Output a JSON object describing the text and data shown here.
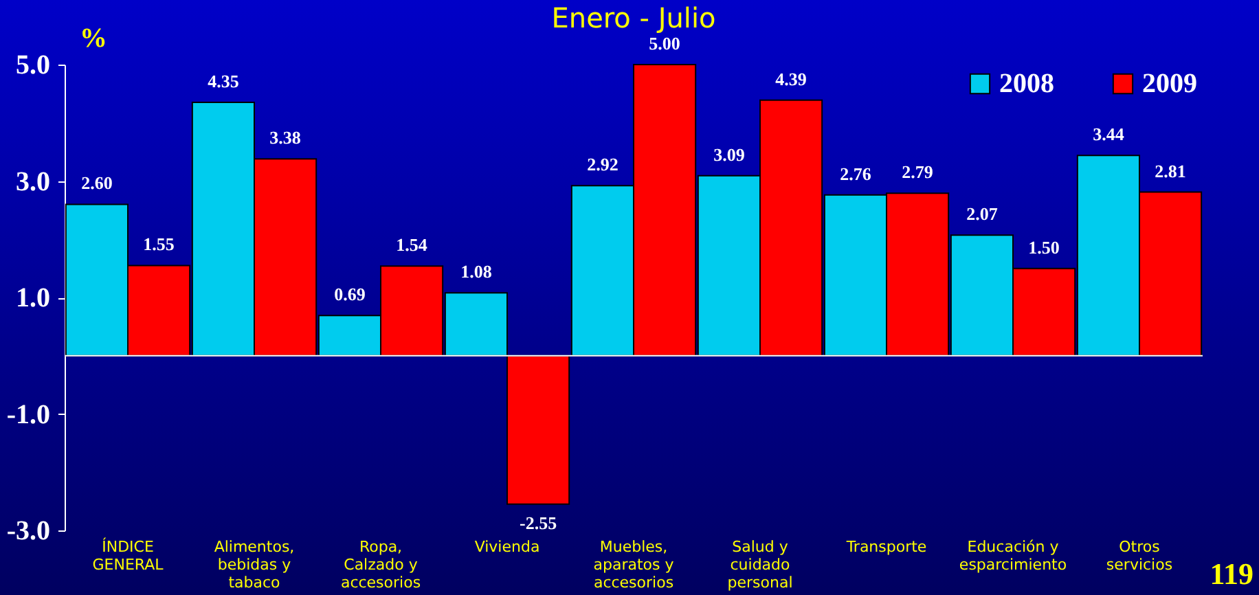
{
  "chart_data": {
    "type": "bar",
    "title": "Enero - Julio",
    "ylabel": "%",
    "categories": [
      "ÍNDICE\nGENERAL",
      "Alimentos,\nbebidas y\ntabaco",
      "Ropa,\nCalzado y\naccesorios",
      "Vivienda",
      "Muebles,\naparatos y\naccesorios",
      "Salud y\ncuidado\npersonal",
      "Transporte",
      "Educación y\nesparcimiento",
      "Otros\nservicios"
    ],
    "series": [
      {
        "name": "2008",
        "color": "#00ccee",
        "values": [
          2.6,
          4.35,
          0.69,
          1.08,
          2.92,
          3.09,
          2.76,
          2.07,
          3.44
        ],
        "value_labels": [
          "2.60",
          "4.35",
          "0.69",
          "1.08",
          "2.92",
          "3.09",
          "2.76",
          "2.07",
          "3.44"
        ]
      },
      {
        "name": "2009",
        "color": "#ff0000",
        "values": [
          1.55,
          3.38,
          1.54,
          -2.55,
          5.0,
          4.39,
          2.79,
          1.5,
          2.81
        ],
        "value_labels": [
          "1.55",
          "3.38",
          "1.54",
          "-2.55",
          "5.00",
          "4.39",
          "2.79",
          "1.50",
          "2.81"
        ]
      }
    ],
    "ylim": [
      -3,
      5
    ],
    "yticks": [
      {
        "value": -3,
        "label": "-3.0"
      },
      {
        "value": -1,
        "label": "-1.0"
      },
      {
        "value": 1,
        "label": "1.0"
      },
      {
        "value": 3,
        "label": "3.0"
      },
      {
        "value": 5,
        "label": "5.0"
      }
    ],
    "legend": "top right",
    "grid": false,
    "annotations": [
      "119"
    ]
  }
}
